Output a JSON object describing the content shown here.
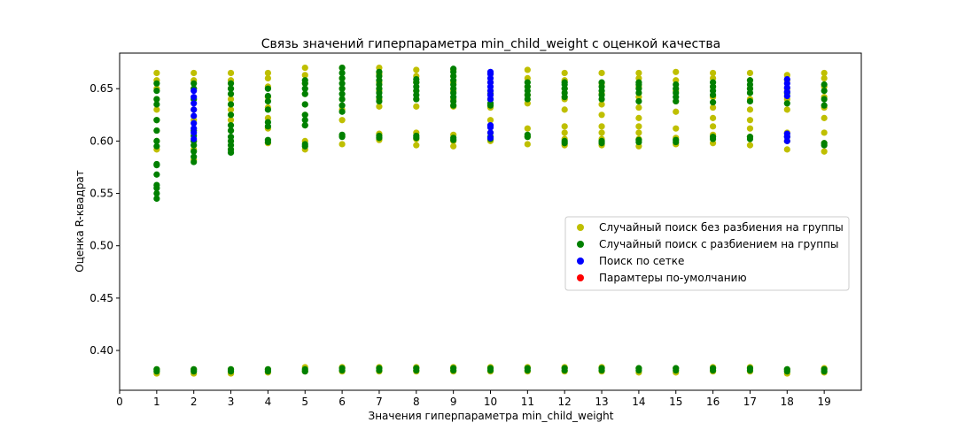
{
  "chart_data": {
    "type": "scatter",
    "title": "Связь значений гиперпараметра min_child_weight с оценкой качества",
    "xlabel": "Значения гиперпараметра min_child_weight",
    "ylabel": "Оценка R-квадрат",
    "xlim": [
      0,
      20
    ],
    "ylim": [
      0.362,
      0.684
    ],
    "xticks": [
      0,
      1,
      2,
      3,
      4,
      5,
      6,
      7,
      8,
      9,
      10,
      11,
      12,
      13,
      14,
      15,
      16,
      17,
      18,
      19
    ],
    "yticks": [
      0.4,
      0.45,
      0.5,
      0.55,
      0.6,
      0.65
    ],
    "ytick_labels": [
      "0.40",
      "0.45",
      "0.50",
      "0.55",
      "0.60",
      "0.65"
    ],
    "grid": false,
    "legend_position": "center-right",
    "series": [
      {
        "name": "Случайный поиск без разбиения на группы",
        "color": "#bfbf00",
        "groups": [
          {
            "x": 1,
            "values": [
              0.378,
              0.382,
              0.592,
              0.6,
              0.61,
              0.62,
              0.63,
              0.64,
              0.65,
              0.658,
              0.665
            ]
          },
          {
            "x": 2,
            "values": [
              0.378,
              0.382,
              0.582,
              0.592,
              0.6,
              0.61,
              0.62,
              0.63,
              0.64,
              0.65,
              0.658,
              0.665
            ]
          },
          {
            "x": 3,
            "values": [
              0.378,
              0.382,
              0.592,
              0.6,
              0.61,
              0.62,
              0.63,
              0.64,
              0.65,
              0.658,
              0.665
            ]
          },
          {
            "x": 4,
            "values": [
              0.379,
              0.382,
              0.598,
              0.612,
              0.622,
              0.632,
              0.642,
              0.652,
              0.66,
              0.665
            ]
          },
          {
            "x": 5,
            "values": [
              0.38,
              0.384,
              0.592,
              0.6,
              0.615,
              0.625,
              0.635,
              0.645,
              0.655,
              0.663,
              0.67
            ]
          },
          {
            "x": 6,
            "values": [
              0.38,
              0.384,
              0.597,
              0.605,
              0.62,
              0.63,
              0.64,
              0.65,
              0.66,
              0.67
            ]
          },
          {
            "x": 7,
            "values": [
              0.38,
              0.384,
              0.601,
              0.607,
              0.633,
              0.64,
              0.648,
              0.656,
              0.664,
              0.67
            ]
          },
          {
            "x": 8,
            "values": [
              0.38,
              0.384,
              0.596,
              0.602,
              0.608,
              0.633,
              0.64,
              0.648,
              0.656,
              0.662,
              0.668
            ]
          },
          {
            "x": 9,
            "values": [
              0.38,
              0.384,
              0.595,
              0.6,
              0.606,
              0.633,
              0.64,
              0.648,
              0.656,
              0.662,
              0.668
            ]
          },
          {
            "x": 10,
            "values": [
              0.38,
              0.384,
              0.6,
              0.608,
              0.614,
              0.62,
              0.632,
              0.64,
              0.648,
              0.656,
              0.664
            ]
          },
          {
            "x": 11,
            "values": [
              0.38,
              0.384,
              0.597,
              0.604,
              0.612,
              0.636,
              0.644,
              0.652,
              0.66,
              0.668
            ]
          },
          {
            "x": 12,
            "values": [
              0.38,
              0.384,
              0.596,
              0.602,
              0.608,
              0.614,
              0.63,
              0.64,
              0.65,
              0.658,
              0.665
            ]
          },
          {
            "x": 13,
            "values": [
              0.38,
              0.384,
              0.596,
              0.602,
              0.608,
              0.614,
              0.625,
              0.635,
              0.645,
              0.655,
              0.665
            ]
          },
          {
            "x": 14,
            "values": [
              0.379,
              0.383,
              0.595,
              0.602,
              0.608,
              0.614,
              0.622,
              0.632,
              0.642,
              0.652,
              0.66,
              0.665
            ]
          },
          {
            "x": 15,
            "values": [
              0.379,
              0.383,
              0.597,
              0.603,
              0.612,
              0.628,
              0.638,
              0.648,
              0.658,
              0.666
            ]
          },
          {
            "x": 16,
            "values": [
              0.38,
              0.384,
              0.598,
              0.606,
              0.614,
              0.622,
              0.632,
              0.642,
              0.652,
              0.66,
              0.665
            ]
          },
          {
            "x": 17,
            "values": [
              0.38,
              0.384,
              0.596,
              0.604,
              0.612,
              0.62,
              0.63,
              0.64,
              0.65,
              0.658,
              0.665
            ]
          },
          {
            "x": 18,
            "values": [
              0.378,
              0.382,
              0.592,
              0.6,
              0.608,
              0.63,
              0.64,
              0.65,
              0.658,
              0.663
            ]
          },
          {
            "x": 19,
            "values": [
              0.379,
              0.383,
              0.59,
              0.598,
              0.608,
              0.622,
              0.632,
              0.642,
              0.652,
              0.66,
              0.665
            ]
          }
        ]
      },
      {
        "name": "Случайный поиск с разбиением на группы",
        "color": "#008000",
        "groups": [
          {
            "x": 1,
            "values": [
              0.38,
              0.382,
              0.545,
              0.55,
              0.555,
              0.558,
              0.568,
              0.577,
              0.578,
              0.595,
              0.6,
              0.61,
              0.62,
              0.635,
              0.64,
              0.648,
              0.655
            ]
          },
          {
            "x": 2,
            "values": [
              0.38,
              0.382,
              0.58,
              0.585,
              0.59,
              0.596,
              0.6,
              0.605,
              0.61,
              0.64,
              0.65,
              0.655
            ]
          },
          {
            "x": 3,
            "values": [
              0.38,
              0.382,
              0.589,
              0.592,
              0.596,
              0.6,
              0.604,
              0.61,
              0.615,
              0.625,
              0.635,
              0.645,
              0.65,
              0.655
            ]
          },
          {
            "x": 4,
            "values": [
              0.38,
              0.382,
              0.599,
              0.601,
              0.614,
              0.618,
              0.63,
              0.638,
              0.643,
              0.65
            ]
          },
          {
            "x": 5,
            "values": [
              0.38,
              0.382,
              0.595,
              0.597,
              0.615,
              0.62,
              0.625,
              0.635,
              0.645,
              0.65,
              0.655,
              0.658
            ]
          },
          {
            "x": 6,
            "values": [
              0.381,
              0.383,
              0.604,
              0.606,
              0.628,
              0.634,
              0.64,
              0.645,
              0.65,
              0.655,
              0.66,
              0.665,
              0.67
            ]
          },
          {
            "x": 7,
            "values": [
              0.381,
              0.383,
              0.603,
              0.605,
              0.638,
              0.642,
              0.646,
              0.65,
              0.654,
              0.658,
              0.662,
              0.666
            ]
          },
          {
            "x": 8,
            "values": [
              0.381,
              0.383,
              0.603,
              0.605,
              0.64,
              0.644,
              0.648,
              0.652,
              0.656,
              0.659
            ]
          },
          {
            "x": 9,
            "values": [
              0.381,
              0.383,
              0.601,
              0.603,
              0.634,
              0.638,
              0.642,
              0.646,
              0.65,
              0.654,
              0.658,
              0.662,
              0.666,
              0.669
            ]
          },
          {
            "x": 10,
            "values": [
              0.381,
              0.383,
              0.602,
              0.604,
              0.634,
              0.636,
              0.64,
              0.645
            ]
          },
          {
            "x": 11,
            "values": [
              0.381,
              0.383,
              0.604,
              0.606,
              0.64,
              0.644,
              0.648,
              0.652,
              0.656
            ]
          },
          {
            "x": 12,
            "values": [
              0.381,
              0.383,
              0.598,
              0.6,
              0.642,
              0.646,
              0.65,
              0.654,
              0.656
            ]
          },
          {
            "x": 13,
            "values": [
              0.381,
              0.383,
              0.598,
              0.6,
              0.64,
              0.644,
              0.648,
              0.652,
              0.656
            ]
          },
          {
            "x": 14,
            "values": [
              0.381,
              0.383,
              0.599,
              0.601,
              0.638,
              0.646,
              0.65,
              0.654,
              0.656
            ]
          },
          {
            "x": 15,
            "values": [
              0.381,
              0.383,
              0.599,
              0.601,
              0.638,
              0.642,
              0.646,
              0.65,
              0.654
            ]
          },
          {
            "x": 16,
            "values": [
              0.381,
              0.383,
              0.602,
              0.604,
              0.637,
              0.644,
              0.648,
              0.652,
              0.656
            ]
          },
          {
            "x": 17,
            "values": [
              0.381,
              0.383,
              0.602,
              0.604,
              0.638,
              0.646,
              0.65,
              0.654,
              0.658
            ]
          },
          {
            "x": 18,
            "values": [
              0.38,
              0.382,
              0.604,
              0.636,
              0.646
            ]
          },
          {
            "x": 19,
            "values": [
              0.38,
              0.382,
              0.596,
              0.598,
              0.634,
              0.64,
              0.648,
              0.654
            ]
          }
        ]
      },
      {
        "name": "Поиск по сетке",
        "color": "#0000ff",
        "groups": [
          {
            "x": 2,
            "values": [
              0.602,
              0.608,
              0.612,
              0.617,
              0.624,
              0.63,
              0.636,
              0.642,
              0.648
            ]
          },
          {
            "x": 10,
            "values": [
              0.603,
              0.608,
              0.613,
              0.615,
              0.64,
              0.644,
              0.648,
              0.652,
              0.656,
              0.66,
              0.664,
              0.666
            ]
          },
          {
            "x": 18,
            "values": [
              0.6,
              0.604,
              0.607,
              0.643,
              0.647,
              0.651,
              0.655,
              0.659
            ]
          }
        ]
      },
      {
        "name": "Парамтеры по-умолчанию",
        "color": "#ff0000",
        "groups": []
      }
    ]
  }
}
